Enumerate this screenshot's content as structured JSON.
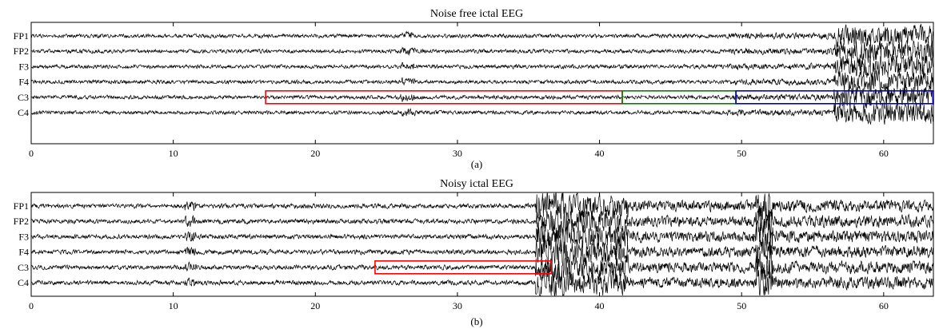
{
  "chart_data": [
    {
      "type": "line",
      "title": "Noise free ictal EEG",
      "caption": "(a)",
      "channels": [
        "FP1",
        "FP2",
        "F3",
        "F4",
        "C3",
        "C4"
      ],
      "x_ticks": [
        "0",
        "10",
        "20",
        "30",
        "40",
        "50",
        "60"
      ],
      "xlim": [
        0,
        63.5
      ],
      "grid": false,
      "colors": {
        "trace": "#000000",
        "box1": "#ff0000",
        "box2": "#008000",
        "box3": "#0000cc"
      },
      "annotations": [
        {
          "type": "box",
          "color": "#ff0000",
          "channel": "C3",
          "x_start": 16.5,
          "x_end": 41.6
        },
        {
          "type": "box",
          "color": "#008000",
          "channel": "C3",
          "x_start": 41.6,
          "x_end": 49.6
        },
        {
          "type": "box",
          "color": "#0000cc",
          "channel": "C3",
          "x_start": 49.6,
          "x_end": 63.5
        }
      ],
      "activity": [
        {
          "x_start": 0,
          "x_end": 26,
          "amp": 0.28
        },
        {
          "x_start": 26,
          "x_end": 27,
          "amp": 0.6
        },
        {
          "x_start": 27,
          "x_end": 49,
          "amp": 0.3
        },
        {
          "x_start": 49,
          "x_end": 56.5,
          "amp": 0.45
        },
        {
          "x_start": 56.5,
          "x_end": 63.5,
          "amp": 1.6
        }
      ]
    },
    {
      "type": "line",
      "title": "Noisy ictal EEG",
      "caption": "(b)",
      "channels": [
        "FP1",
        "FP2",
        "F3",
        "F4",
        "C3",
        "C4"
      ],
      "x_ticks": [
        "0",
        "10",
        "20",
        "30",
        "40",
        "50",
        "60"
      ],
      "xlim": [
        0,
        63.5
      ],
      "grid": false,
      "colors": {
        "trace": "#000000",
        "box1": "#ff0000"
      },
      "annotations": [
        {
          "type": "box",
          "color": "#ff0000",
          "channel": "C3",
          "x_start": 24.2,
          "x_end": 36.6
        }
      ],
      "activity": [
        {
          "x_start": 0,
          "x_end": 10.8,
          "amp": 0.32
        },
        {
          "x_start": 10.8,
          "x_end": 11.6,
          "amp": 0.8
        },
        {
          "x_start": 11.6,
          "x_end": 35.5,
          "amp": 0.35
        },
        {
          "x_start": 35.5,
          "x_end": 37.8,
          "amp": 2.2
        },
        {
          "x_start": 37.8,
          "x_end": 42,
          "amp": 1.8
        },
        {
          "x_start": 42,
          "x_end": 51,
          "amp": 0.8
        },
        {
          "x_start": 51,
          "x_end": 52.2,
          "amp": 2.5
        },
        {
          "x_start": 52.2,
          "x_end": 63.5,
          "amp": 0.9
        }
      ]
    }
  ]
}
